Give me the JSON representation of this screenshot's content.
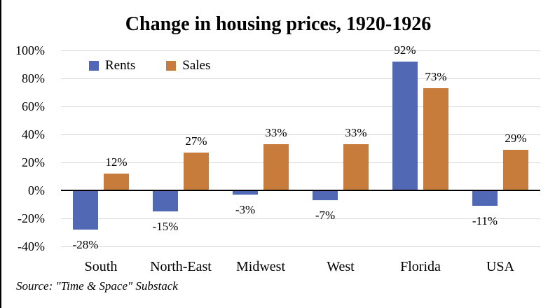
{
  "chart_data": {
    "type": "bar",
    "title": "Change in housing prices, 1920-1926",
    "categories": [
      "South",
      "North-East",
      "Midwest",
      "West",
      "Florida",
      "USA"
    ],
    "series": [
      {
        "name": "Rents",
        "color": "#5169B5",
        "values": [
          -28,
          -15,
          -3,
          -7,
          92,
          -11
        ],
        "labels": [
          "-28%",
          "-15%",
          "-3%",
          "-7%",
          "92%",
          "-11%"
        ]
      },
      {
        "name": "Sales",
        "color": "#C87C3B",
        "values": [
          12,
          27,
          33,
          33,
          73,
          29
        ],
        "labels": [
          "12%",
          "27%",
          "33%",
          "33%",
          "73%",
          "29%"
        ]
      }
    ],
    "y_axis": {
      "min": -40,
      "max": 100,
      "tick_step": 20,
      "ticks": [
        {
          "value": 100,
          "label": "100%"
        },
        {
          "value": 80,
          "label": "80%"
        },
        {
          "value": 60,
          "label": "60%"
        },
        {
          "value": 40,
          "label": "40%"
        },
        {
          "value": 20,
          "label": "20%"
        },
        {
          "value": 0,
          "label": "0%"
        },
        {
          "value": -20,
          "label": "-20%"
        },
        {
          "value": -40,
          "label": "-40%"
        }
      ]
    },
    "grid": true,
    "gridline_color": "#D9D9D9",
    "axis_line_color": "#000000",
    "legend_position": "top-left",
    "source": "Source: \"Time & Space\" Substack"
  }
}
